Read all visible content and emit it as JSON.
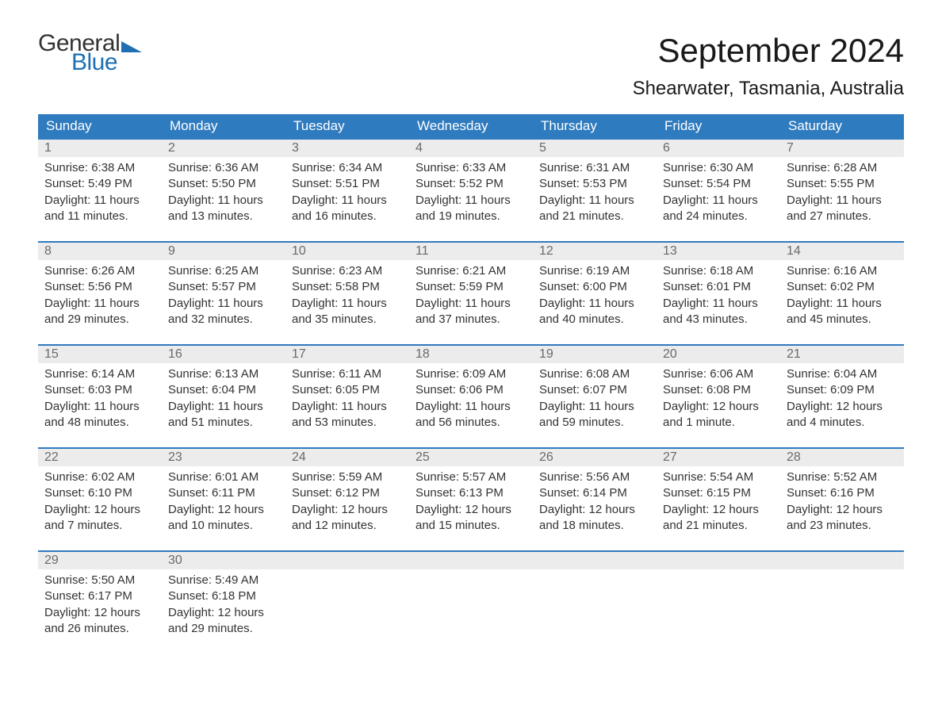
{
  "brand": {
    "general": "General",
    "blue": "Blue",
    "general_color": "#333333",
    "blue_color": "#1f6fb2",
    "flag_color": "#1f6fb2"
  },
  "header": {
    "month_title": "September 2024",
    "location": "Shearwater, Tasmania, Australia",
    "title_fontsize": 42,
    "location_fontsize": 24
  },
  "colors": {
    "header_bg": "#2f7bbf",
    "header_text": "#ffffff",
    "week_border": "#2f7bbf",
    "daynum_bg": "#ececec",
    "daynum_text": "#6a6a6a",
    "body_text": "#333333",
    "background": "#ffffff"
  },
  "calendar": {
    "weekdays": [
      "Sunday",
      "Monday",
      "Tuesday",
      "Wednesday",
      "Thursday",
      "Friday",
      "Saturday"
    ],
    "weeks": [
      [
        {
          "num": "1",
          "sunrise": "Sunrise: 6:38 AM",
          "sunset": "Sunset: 5:49 PM",
          "daylight": "Daylight: 11 hours and 11 minutes."
        },
        {
          "num": "2",
          "sunrise": "Sunrise: 6:36 AM",
          "sunset": "Sunset: 5:50 PM",
          "daylight": "Daylight: 11 hours and 13 minutes."
        },
        {
          "num": "3",
          "sunrise": "Sunrise: 6:34 AM",
          "sunset": "Sunset: 5:51 PM",
          "daylight": "Daylight: 11 hours and 16 minutes."
        },
        {
          "num": "4",
          "sunrise": "Sunrise: 6:33 AM",
          "sunset": "Sunset: 5:52 PM",
          "daylight": "Daylight: 11 hours and 19 minutes."
        },
        {
          "num": "5",
          "sunrise": "Sunrise: 6:31 AM",
          "sunset": "Sunset: 5:53 PM",
          "daylight": "Daylight: 11 hours and 21 minutes."
        },
        {
          "num": "6",
          "sunrise": "Sunrise: 6:30 AM",
          "sunset": "Sunset: 5:54 PM",
          "daylight": "Daylight: 11 hours and 24 minutes."
        },
        {
          "num": "7",
          "sunrise": "Sunrise: 6:28 AM",
          "sunset": "Sunset: 5:55 PM",
          "daylight": "Daylight: 11 hours and 27 minutes."
        }
      ],
      [
        {
          "num": "8",
          "sunrise": "Sunrise: 6:26 AM",
          "sunset": "Sunset: 5:56 PM",
          "daylight": "Daylight: 11 hours and 29 minutes."
        },
        {
          "num": "9",
          "sunrise": "Sunrise: 6:25 AM",
          "sunset": "Sunset: 5:57 PM",
          "daylight": "Daylight: 11 hours and 32 minutes."
        },
        {
          "num": "10",
          "sunrise": "Sunrise: 6:23 AM",
          "sunset": "Sunset: 5:58 PM",
          "daylight": "Daylight: 11 hours and 35 minutes."
        },
        {
          "num": "11",
          "sunrise": "Sunrise: 6:21 AM",
          "sunset": "Sunset: 5:59 PM",
          "daylight": "Daylight: 11 hours and 37 minutes."
        },
        {
          "num": "12",
          "sunrise": "Sunrise: 6:19 AM",
          "sunset": "Sunset: 6:00 PM",
          "daylight": "Daylight: 11 hours and 40 minutes."
        },
        {
          "num": "13",
          "sunrise": "Sunrise: 6:18 AM",
          "sunset": "Sunset: 6:01 PM",
          "daylight": "Daylight: 11 hours and 43 minutes."
        },
        {
          "num": "14",
          "sunrise": "Sunrise: 6:16 AM",
          "sunset": "Sunset: 6:02 PM",
          "daylight": "Daylight: 11 hours and 45 minutes."
        }
      ],
      [
        {
          "num": "15",
          "sunrise": "Sunrise: 6:14 AM",
          "sunset": "Sunset: 6:03 PM",
          "daylight": "Daylight: 11 hours and 48 minutes."
        },
        {
          "num": "16",
          "sunrise": "Sunrise: 6:13 AM",
          "sunset": "Sunset: 6:04 PM",
          "daylight": "Daylight: 11 hours and 51 minutes."
        },
        {
          "num": "17",
          "sunrise": "Sunrise: 6:11 AM",
          "sunset": "Sunset: 6:05 PM",
          "daylight": "Daylight: 11 hours and 53 minutes."
        },
        {
          "num": "18",
          "sunrise": "Sunrise: 6:09 AM",
          "sunset": "Sunset: 6:06 PM",
          "daylight": "Daylight: 11 hours and 56 minutes."
        },
        {
          "num": "19",
          "sunrise": "Sunrise: 6:08 AM",
          "sunset": "Sunset: 6:07 PM",
          "daylight": "Daylight: 11 hours and 59 minutes."
        },
        {
          "num": "20",
          "sunrise": "Sunrise: 6:06 AM",
          "sunset": "Sunset: 6:08 PM",
          "daylight": "Daylight: 12 hours and 1 minute."
        },
        {
          "num": "21",
          "sunrise": "Sunrise: 6:04 AM",
          "sunset": "Sunset: 6:09 PM",
          "daylight": "Daylight: 12 hours and 4 minutes."
        }
      ],
      [
        {
          "num": "22",
          "sunrise": "Sunrise: 6:02 AM",
          "sunset": "Sunset: 6:10 PM",
          "daylight": "Daylight: 12 hours and 7 minutes."
        },
        {
          "num": "23",
          "sunrise": "Sunrise: 6:01 AM",
          "sunset": "Sunset: 6:11 PM",
          "daylight": "Daylight: 12 hours and 10 minutes."
        },
        {
          "num": "24",
          "sunrise": "Sunrise: 5:59 AM",
          "sunset": "Sunset: 6:12 PM",
          "daylight": "Daylight: 12 hours and 12 minutes."
        },
        {
          "num": "25",
          "sunrise": "Sunrise: 5:57 AM",
          "sunset": "Sunset: 6:13 PM",
          "daylight": "Daylight: 12 hours and 15 minutes."
        },
        {
          "num": "26",
          "sunrise": "Sunrise: 5:56 AM",
          "sunset": "Sunset: 6:14 PM",
          "daylight": "Daylight: 12 hours and 18 minutes."
        },
        {
          "num": "27",
          "sunrise": "Sunrise: 5:54 AM",
          "sunset": "Sunset: 6:15 PM",
          "daylight": "Daylight: 12 hours and 21 minutes."
        },
        {
          "num": "28",
          "sunrise": "Sunrise: 5:52 AM",
          "sunset": "Sunset: 6:16 PM",
          "daylight": "Daylight: 12 hours and 23 minutes."
        }
      ],
      [
        {
          "num": "29",
          "sunrise": "Sunrise: 5:50 AM",
          "sunset": "Sunset: 6:17 PM",
          "daylight": "Daylight: 12 hours and 26 minutes."
        },
        {
          "num": "30",
          "sunrise": "Sunrise: 5:49 AM",
          "sunset": "Sunset: 6:18 PM",
          "daylight": "Daylight: 12 hours and 29 minutes."
        },
        {
          "num": "",
          "sunrise": "",
          "sunset": "",
          "daylight": ""
        },
        {
          "num": "",
          "sunrise": "",
          "sunset": "",
          "daylight": ""
        },
        {
          "num": "",
          "sunrise": "",
          "sunset": "",
          "daylight": ""
        },
        {
          "num": "",
          "sunrise": "",
          "sunset": "",
          "daylight": ""
        },
        {
          "num": "",
          "sunrise": "",
          "sunset": "",
          "daylight": ""
        }
      ]
    ]
  }
}
